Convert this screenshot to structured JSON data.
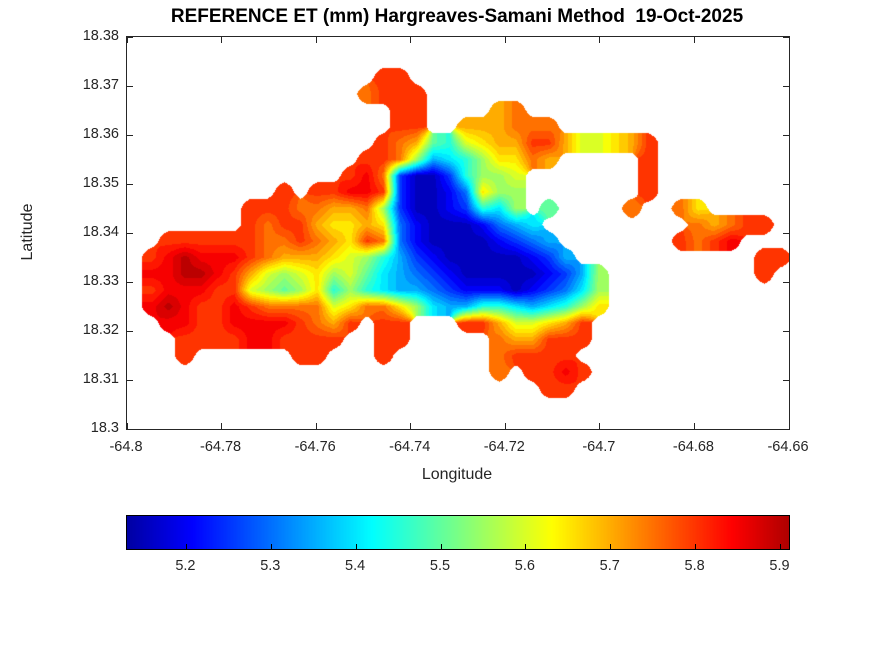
{
  "chart_data": {
    "type": "heatmap",
    "subtype": "filled-contour-map",
    "title": "REFERENCE ET (mm) Hargreaves-Samani Method  19-Oct-2025",
    "xlabel": "Longitude",
    "ylabel": "Latitude",
    "xlim": [
      -64.8,
      -64.66
    ],
    "ylim": [
      18.3,
      18.38
    ],
    "grid_lines": "off",
    "box": "on",
    "tick_direction": "in",
    "x_ticks": [
      {
        "value": -64.8,
        "label": "-64.8"
      },
      {
        "value": -64.78,
        "label": "-64.78"
      },
      {
        "value": -64.76,
        "label": "-64.76"
      },
      {
        "value": -64.74,
        "label": "-64.74"
      },
      {
        "value": -64.72,
        "label": "-64.72"
      },
      {
        "value": -64.7,
        "label": "-64.7"
      },
      {
        "value": -64.68,
        "label": "-64.68"
      },
      {
        "value": -64.66,
        "label": "-64.66"
      }
    ],
    "y_ticks": [
      {
        "value": 18.3,
        "label": "18.3"
      },
      {
        "value": 18.31,
        "label": "18.31"
      },
      {
        "value": 18.32,
        "label": "18.32"
      },
      {
        "value": 18.33,
        "label": "18.33"
      },
      {
        "value": 18.34,
        "label": "18.34"
      },
      {
        "value": 18.35,
        "label": "18.35"
      },
      {
        "value": 18.36,
        "label": "18.36"
      },
      {
        "value": 18.37,
        "label": "18.37"
      },
      {
        "value": 18.38,
        "label": "18.38"
      }
    ],
    "colormap": "jet",
    "color_domain": [
      5.1,
      5.95
    ],
    "band_step": 0.025,
    "colorbar": {
      "orientation": "horizontal",
      "range": [
        5.13,
        5.91
      ],
      "ticks": [
        {
          "value": 5.2,
          "label": "5.2"
        },
        {
          "value": 5.3,
          "label": "5.3"
        },
        {
          "value": 5.4,
          "label": "5.4"
        },
        {
          "value": 5.5,
          "label": "5.5"
        },
        {
          "value": 5.6,
          "label": "5.6"
        },
        {
          "value": 5.7,
          "label": "5.7"
        },
        {
          "value": 5.8,
          "label": "5.8"
        },
        {
          "value": 5.9,
          "label": "5.9"
        }
      ]
    },
    "grid": {
      "comment": "Reference ET (mm) sampled on a lon-lat grid over St. John USVI; '.'=water/no data; chars a..p map to 5.15..5.90 in 0.05 steps",
      "ncols": 40,
      "nrows": 24,
      "lon_range": [
        -64.8,
        -64.66
      ],
      "lat_range": [
        18.38,
        18.3
      ],
      "water_char": ".",
      "value_chars": "abcdefghijklmnop",
      "value_min": 5.15,
      "value_step": 0.05,
      "rows": [
        "........................................",
        "........................................",
        "...............nn.......................",
        "..............mnnn......................",
        "................nn....lm................",
        "................nn..lllmmm..............",
        "...............nmlhgjkllnnljjkln........",
        "..............nnmiefgikkml.....n........",
        ".............nomcaacgiij.......n........",
        ".........n.nnooncaabdkii.......n........",
        ".......nnnmmllmicaabcgfi.h....m..mk.....",
        ".......nmnnlkklkdbaaabdef.........mlmnn.",
        "..nnnnnnmmnmlknmdbaaaabcde.......nmno...",
        ".nopooonmlllkjigecbaaaaabce...........nn",
        ".oopponljijkijhfedcbaaaaabcei.........n.",
        ".nooonnjihikgigfeedcbbbabcdfi...........",
        ".oponnonmmmmjkmmkifeeggfefgik...........",
        "..oonnoooonmln.nn...nnljjkln............",
        "...nnnnoonnnn..nn.....mllnnn............",
        "...n......nn...n......mnnnn.............",
        "......................m.nnon............",
        ".........................nn............",
        "........................................",
        "........................................"
      ]
    }
  }
}
